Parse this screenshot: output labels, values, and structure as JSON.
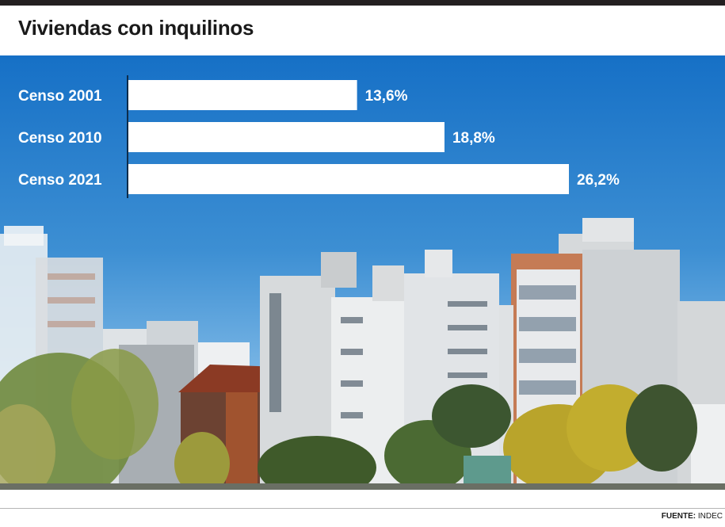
{
  "header": {
    "title": "Viviendas con inquilinos"
  },
  "chart_data": {
    "type": "bar",
    "orientation": "horizontal",
    "categories": [
      "Censo 2001",
      "Censo 2010",
      "Censo 2021"
    ],
    "values": [
      13.6,
      18.8,
      26.2
    ],
    "value_labels": [
      "13,6%",
      "18,8%",
      "26,2%"
    ],
    "unit": "%",
    "xlim": [
      0,
      35
    ],
    "title": "Viviendas con inquilinos",
    "bar_color": "#ffffff",
    "label_color": "#ffffff",
    "grid": false
  },
  "footer": {
    "source_label": "FUENTE:",
    "source_value": "INDEC"
  },
  "colors": {
    "sky_top": "#1872c7",
    "sky_bottom": "#8cc1e6",
    "topbar": "#231f20"
  }
}
